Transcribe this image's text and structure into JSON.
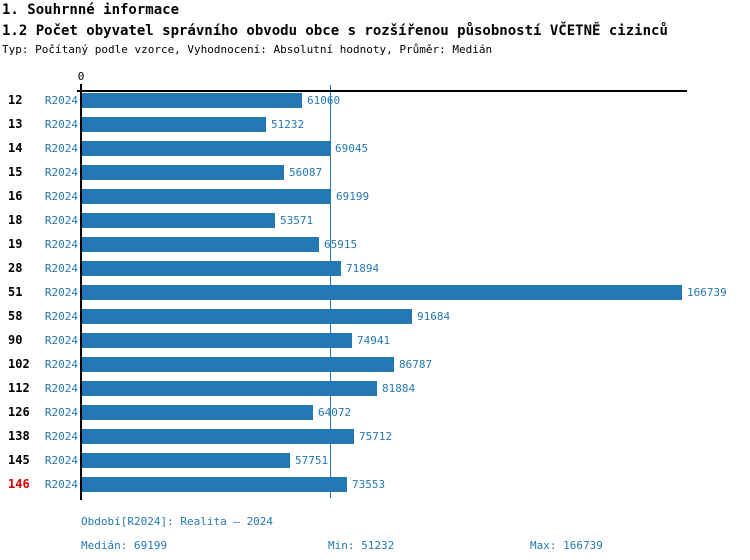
{
  "header": {
    "title_line1": "1. Souhrnné informace",
    "title_line2": "1.2 Počet obyvatel správního obvodu obce s rozšířenou působností VČETNĚ cizinců",
    "subtitle": "Typ: Počítaný podle vzorce, Vyhodnocení: Absolutní hodnoty, Průměr: Medián"
  },
  "chart": {
    "zero_label": "0",
    "bar_color": "#2478b4",
    "text_color": "#2478b4",
    "highlight_color": "#dd0000",
    "rows": [
      {
        "id": "12",
        "period": "R2024",
        "value": 61060,
        "highlight": false
      },
      {
        "id": "13",
        "period": "R2024",
        "value": 51232,
        "highlight": false
      },
      {
        "id": "14",
        "period": "R2024",
        "value": 69045,
        "highlight": false
      },
      {
        "id": "15",
        "period": "R2024",
        "value": 56087,
        "highlight": false
      },
      {
        "id": "16",
        "period": "R2024",
        "value": 69199,
        "highlight": false
      },
      {
        "id": "18",
        "period": "R2024",
        "value": 53571,
        "highlight": false
      },
      {
        "id": "19",
        "period": "R2024",
        "value": 65915,
        "highlight": false
      },
      {
        "id": "28",
        "period": "R2024",
        "value": 71894,
        "highlight": false
      },
      {
        "id": "51",
        "period": "R2024",
        "value": 166739,
        "highlight": false
      },
      {
        "id": "58",
        "period": "R2024",
        "value": 91684,
        "highlight": false
      },
      {
        "id": "90",
        "period": "R2024",
        "value": 74941,
        "highlight": false
      },
      {
        "id": "102",
        "period": "R2024",
        "value": 86787,
        "highlight": false
      },
      {
        "id": "112",
        "period": "R2024",
        "value": 81884,
        "highlight": false
      },
      {
        "id": "126",
        "period": "R2024",
        "value": 64072,
        "highlight": false
      },
      {
        "id": "138",
        "period": "R2024",
        "value": 75712,
        "highlight": false
      },
      {
        "id": "145",
        "period": "R2024",
        "value": 57751,
        "highlight": false
      },
      {
        "id": "146",
        "period": "R2024",
        "value": 73553,
        "highlight": true
      }
    ]
  },
  "chart_data": {
    "type": "bar",
    "orientation": "horizontal",
    "categories": [
      "12",
      "13",
      "14",
      "15",
      "16",
      "18",
      "19",
      "28",
      "51",
      "58",
      "90",
      "102",
      "112",
      "126",
      "138",
      "145",
      "146"
    ],
    "series": [
      {
        "name": "R2024",
        "values": [
          61060,
          51232,
          69045,
          56087,
          69199,
          53571,
          65915,
          71894,
          166739,
          91684,
          74941,
          86787,
          81884,
          64072,
          75712,
          57751,
          73553
        ]
      }
    ],
    "xlim": [
      0,
      166739
    ],
    "x_axis_origin_label": "0",
    "median": 69199,
    "min": 51232,
    "max": 166739,
    "median_line": true,
    "highlighted_category": "146",
    "title": "1.2 Počet obyvatel správního obvodu obce s rozšířenou působností VČETNĚ cizinců",
    "grid": false,
    "legend": false
  },
  "footer": {
    "period": "Období[R2024]: Realita – 2024",
    "median": "Medián: 69199",
    "min": "Min: 51232",
    "max": "Max: 166739"
  }
}
